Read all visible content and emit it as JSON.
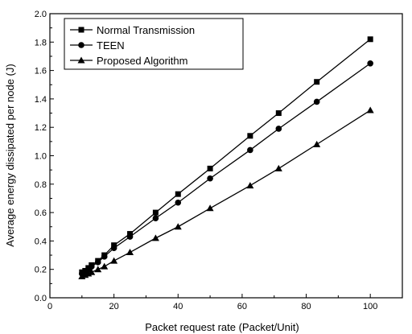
{
  "chart_data": {
    "type": "line",
    "title": "",
    "xlabel": "Packet request rate (Packet/Unit)",
    "ylabel": "Average energy dissipated per node (J)",
    "xlim": [
      0,
      110
    ],
    "ylim": [
      0.0,
      2.0
    ],
    "xticks": [
      0,
      20,
      40,
      60,
      80,
      100
    ],
    "yticks": [
      0.0,
      0.2,
      0.4,
      0.6,
      0.8,
      1.0,
      1.2,
      1.4,
      1.6,
      1.8,
      2.0
    ],
    "xtick_labels": [
      "0",
      "20",
      "40",
      "60",
      "80",
      "100"
    ],
    "ytick_labels": [
      "0.0",
      "0.2",
      "0.4",
      "0.6",
      "0.8",
      "1.0",
      "1.2",
      "1.4",
      "1.6",
      "1.8",
      "2.0"
    ],
    "grid": false,
    "legend_position": "top-left",
    "series": [
      {
        "name": "Normal Transmission",
        "marker": "square",
        "color": "#000000",
        "x": [
          10,
          11,
          12,
          13,
          15,
          17,
          20,
          25,
          33,
          40,
          50,
          62.5,
          71.4,
          83.3,
          100
        ],
        "y": [
          0.18,
          0.19,
          0.21,
          0.23,
          0.26,
          0.3,
          0.37,
          0.45,
          0.6,
          0.73,
          0.91,
          1.14,
          1.3,
          1.52,
          1.82
        ]
      },
      {
        "name": "TEEN",
        "marker": "circle",
        "color": "#000000",
        "x": [
          10,
          11,
          12,
          13,
          15,
          17,
          20,
          25,
          33,
          40,
          50,
          62.5,
          71.4,
          83.3,
          100
        ],
        "y": [
          0.17,
          0.18,
          0.2,
          0.22,
          0.25,
          0.29,
          0.35,
          0.43,
          0.56,
          0.67,
          0.84,
          1.04,
          1.19,
          1.38,
          1.65
        ]
      },
      {
        "name": "Proposed Algorithm",
        "marker": "triangle",
        "color": "#000000",
        "x": [
          10,
          11,
          12,
          13,
          15,
          17,
          20,
          25,
          33,
          40,
          50,
          62.5,
          71.4,
          83.3,
          100
        ],
        "y": [
          0.15,
          0.16,
          0.17,
          0.18,
          0.2,
          0.22,
          0.26,
          0.32,
          0.42,
          0.5,
          0.63,
          0.79,
          0.91,
          1.08,
          1.32
        ]
      }
    ]
  }
}
